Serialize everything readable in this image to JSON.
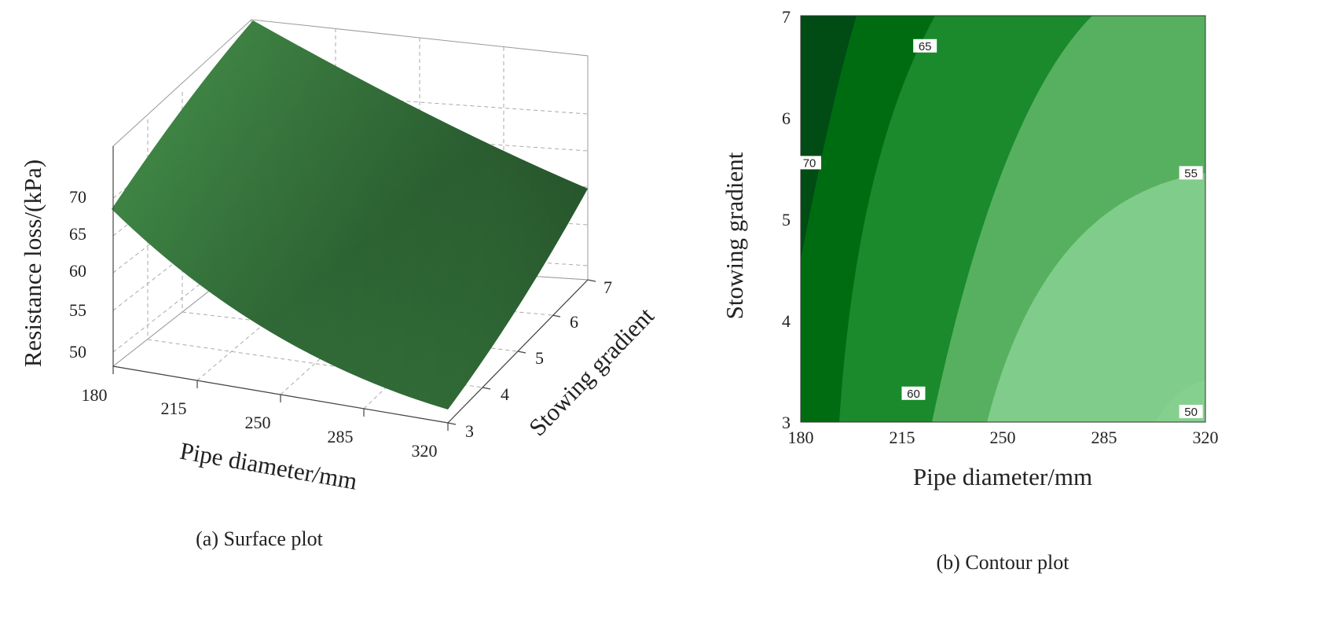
{
  "chart_data": [
    {
      "type": "surface",
      "caption": "(a) Surface plot",
      "xlabel": "Pipe diameter/mm",
      "ylabel": "Stowing gradient",
      "zlabel": "Resistance loss/(kPa)",
      "x_ticks": [
        "180",
        "215",
        "250",
        "285",
        "320"
      ],
      "y_ticks": [
        "3",
        "4",
        "5",
        "6",
        "7"
      ],
      "z_ticks": [
        "50",
        "55",
        "60",
        "65",
        "70"
      ],
      "xlim": [
        180,
        320
      ],
      "ylim": [
        3,
        7
      ],
      "zlim": [
        48,
        74
      ],
      "corner_values": [
        {
          "x": 180,
          "y": 3,
          "z": 68.5
        },
        {
          "x": 320,
          "y": 3,
          "z": 48.5
        },
        {
          "x": 180,
          "y": 7,
          "z": 72.0
        },
        {
          "x": 320,
          "y": 7,
          "z": 56.5
        }
      ],
      "surface_color": "#3e7f44",
      "grid": true
    },
    {
      "type": "contour",
      "caption": "(b) Contour plot",
      "xlabel": "Pipe diameter/mm",
      "ylabel": "Stowing gradient",
      "x_ticks": [
        "180",
        "215",
        "250",
        "285",
        "320"
      ],
      "y_ticks": [
        "3",
        "4",
        "5",
        "6",
        "7"
      ],
      "xlim": [
        180,
        320
      ],
      "ylim": [
        3,
        7
      ],
      "levels": [
        50,
        55,
        60,
        65,
        70
      ],
      "level_labels": [
        {
          "text": "70",
          "x": 183,
          "y": 5.55
        },
        {
          "text": "65",
          "x": 223,
          "y": 6.7
        },
        {
          "text": "60",
          "x": 219,
          "y": 3.28
        },
        {
          "text": "55",
          "x": 315,
          "y": 5.45
        },
        {
          "text": "50",
          "x": 315,
          "y": 3.1
        }
      ],
      "band_colors": [
        "#80cc8a",
        "#57b05f",
        "#1a8a2c",
        "#006c12",
        "#004c14"
      ]
    }
  ]
}
